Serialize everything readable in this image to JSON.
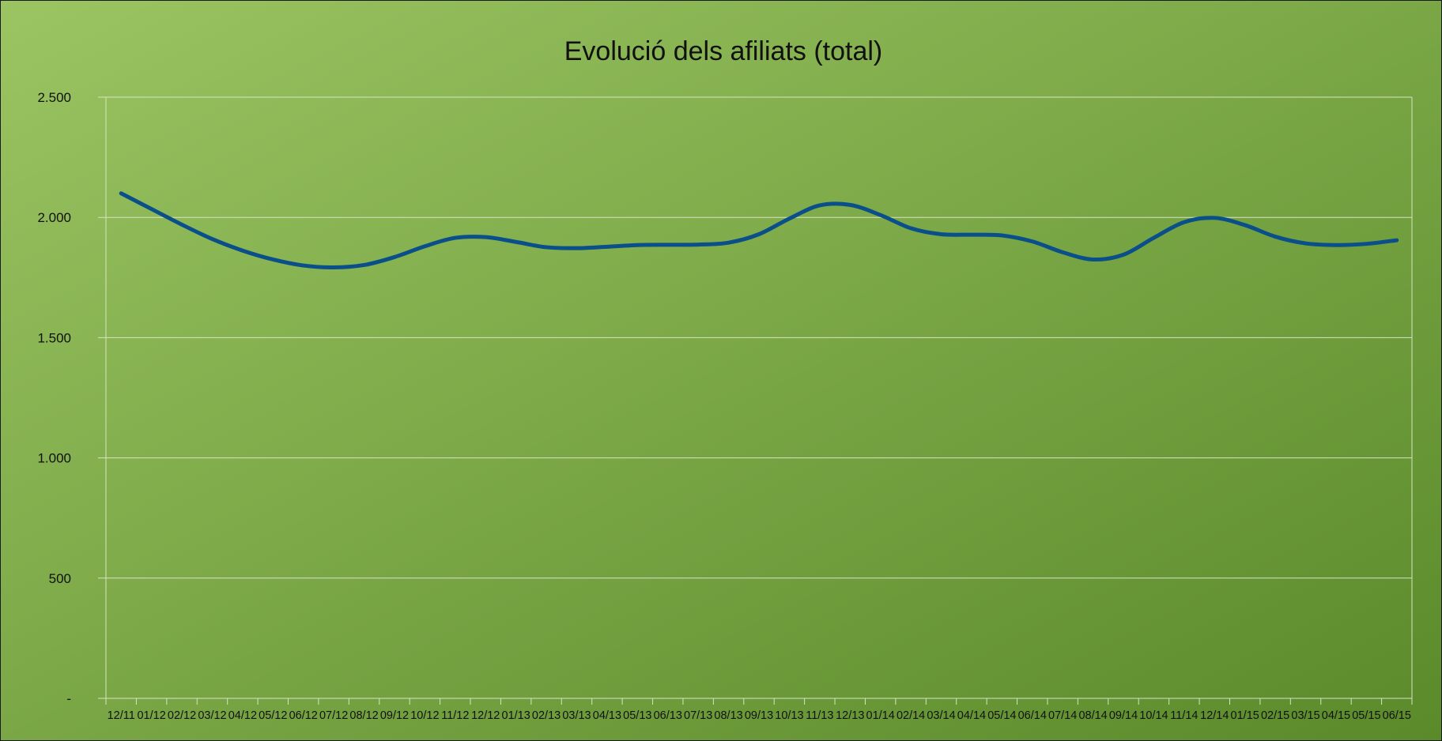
{
  "colors": {
    "background_start": "#9bc462",
    "background_end": "#5a8a2a",
    "gridline": "#d6e4c2",
    "series_line": "#0a4f8a"
  },
  "chart_data": {
    "type": "line",
    "title": "Evolució dels afiliats (total)",
    "xlabel": "",
    "ylabel": "",
    "ylim": [
      0,
      2500
    ],
    "y_ticks": [
      {
        "value": 0,
        "label": "-"
      },
      {
        "value": 500,
        "label": "500"
      },
      {
        "value": 1000,
        "label": "1.000"
      },
      {
        "value": 1500,
        "label": "1.500"
      },
      {
        "value": 2000,
        "label": "2.000"
      },
      {
        "value": 2500,
        "label": "2.500"
      }
    ],
    "grid": true,
    "legend": "none",
    "smooth": true,
    "categories": [
      "12/11",
      "01/12",
      "02/12",
      "03/12",
      "04/12",
      "05/12",
      "06/12",
      "07/12",
      "08/12",
      "09/12",
      "10/12",
      "11/12",
      "12/12",
      "01/13",
      "02/13",
      "03/13",
      "04/13",
      "05/13",
      "06/13",
      "07/13",
      "08/13",
      "09/13",
      "10/13",
      "11/13",
      "12/13",
      "01/14",
      "02/14",
      "03/14",
      "04/14",
      "05/14",
      "06/14",
      "07/14",
      "08/14",
      "09/14",
      "10/14",
      "11/14",
      "12/14",
      "01/15",
      "02/15",
      "03/15",
      "04/15",
      "05/15",
      "06/15"
    ],
    "series": [
      {
        "values": [
          2100,
          2035,
          1970,
          1910,
          1862,
          1825,
          1800,
          1792,
          1802,
          1835,
          1880,
          1915,
          1918,
          1898,
          1876,
          1872,
          1878,
          1885,
          1886,
          1887,
          1895,
          1930,
          1995,
          2050,
          2052,
          2010,
          1955,
          1930,
          1928,
          1925,
          1900,
          1855,
          1825,
          1845,
          1915,
          1980,
          1998,
          1968,
          1920,
          1892,
          1885,
          1890,
          1905
        ]
      }
    ]
  }
}
